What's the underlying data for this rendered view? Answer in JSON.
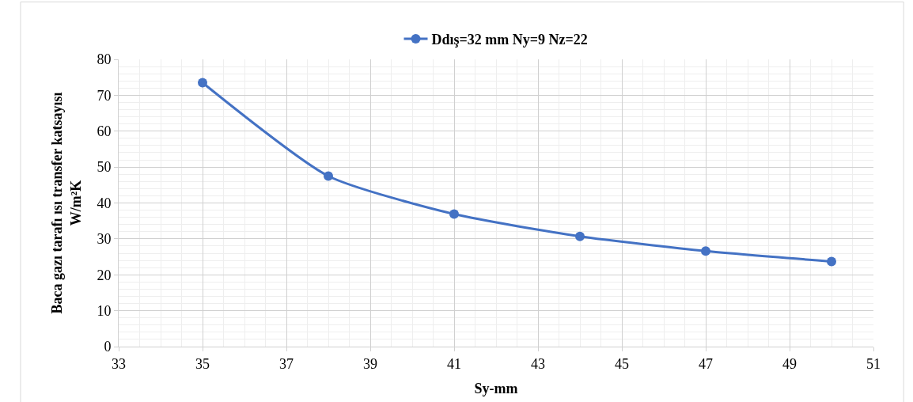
{
  "chart_data": {
    "type": "line",
    "xlabel": "Sy-mm",
    "ylabel": "Baca gazı tarafı ısı transfer katsayısı\nW/m²K",
    "x": [
      35,
      38,
      41,
      44,
      47,
      50
    ],
    "series": [
      {
        "name": "Ddış=32 mm Ny=9 Nz=22",
        "color": "#4472c4",
        "values": [
          73.5,
          47.5,
          36.9,
          30.7,
          26.6,
          23.7
        ]
      }
    ],
    "xlim": [
      33,
      51
    ],
    "xticks": [
      33,
      35,
      37,
      39,
      41,
      43,
      45,
      47,
      49,
      51
    ],
    "ylim": [
      0,
      80
    ],
    "yticks": [
      0,
      10,
      20,
      30,
      40,
      50,
      60,
      70,
      80
    ],
    "grid": true,
    "legend": "top",
    "marker": "circle",
    "line_style": "solid"
  }
}
